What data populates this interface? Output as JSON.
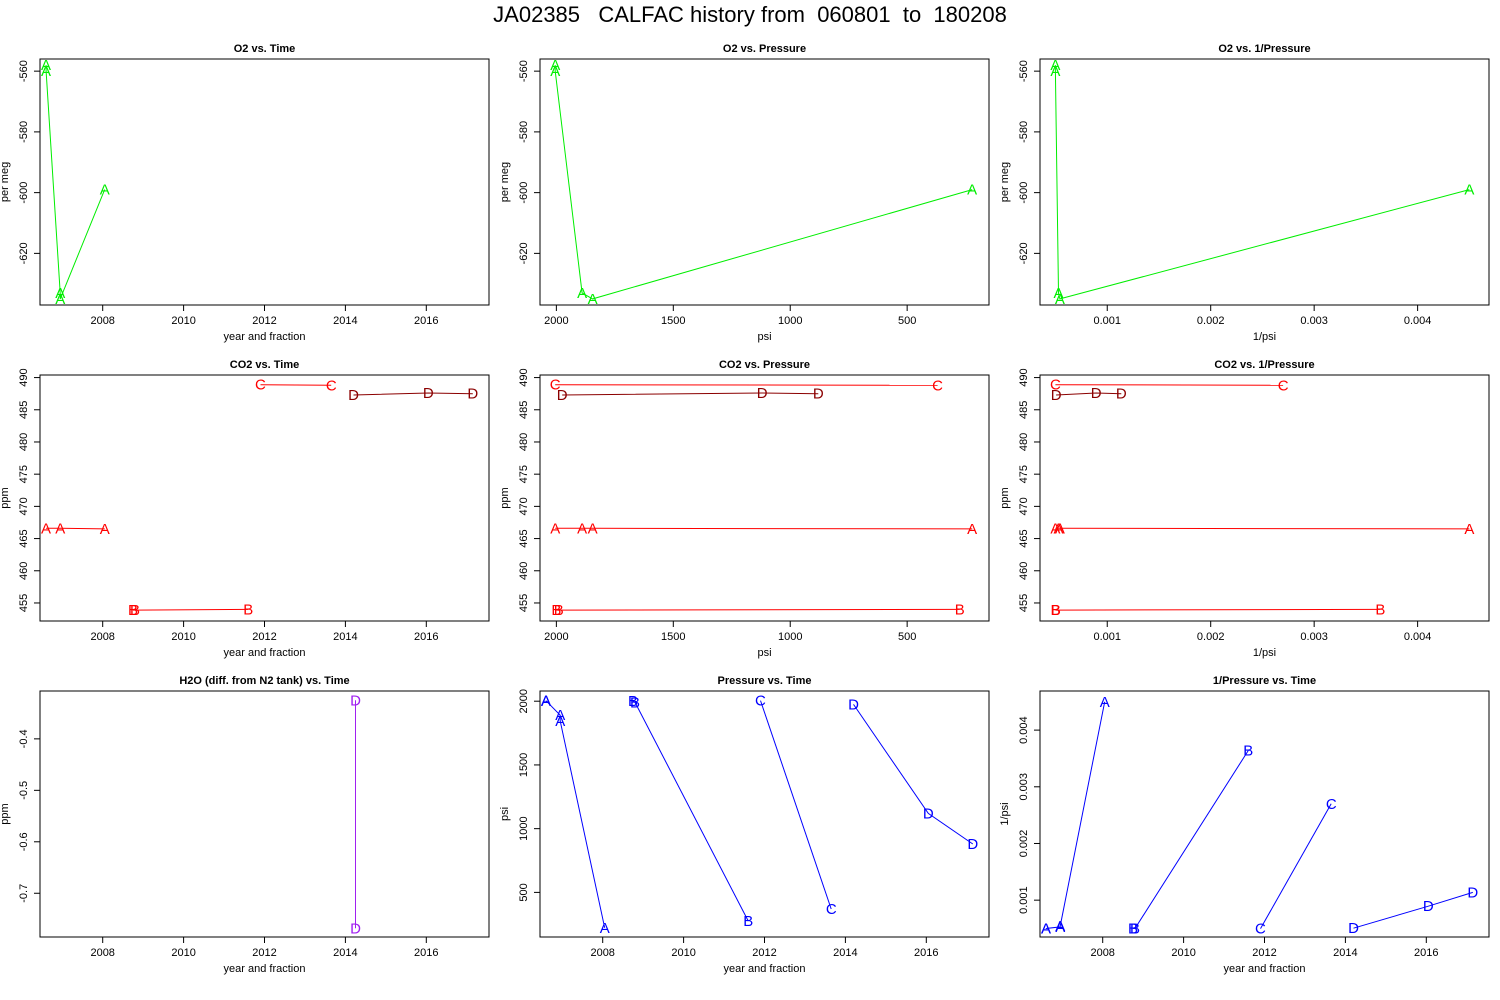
{
  "title": "JA02385   CALFAC history from  060801  to  180208",
  "colors": {
    "green": "#00ee00",
    "red": "#ff0000",
    "darkred": "#8b0000",
    "purple": "#a020f0",
    "blue": "#0000ff"
  },
  "chart_data": [
    {
      "type": "line",
      "title": "O2 vs. Time",
      "xlabel": "year and fraction",
      "ylabel": "per meg",
      "xlim": [
        2006.45,
        2017.55
      ],
      "ylim": [
        -637,
        -556
      ],
      "xticks": [
        2008,
        2010,
        2012,
        2014,
        2016
      ],
      "yticks": [
        -620,
        -600,
        -580,
        -560
      ],
      "ytick_rotated": true,
      "series": [
        {
          "color": "green",
          "points": [
            {
              "x": 2006.6,
              "y": -558,
              "label": "A"
            },
            {
              "x": 2006.6,
              "y": -560,
              "label": "A"
            },
            {
              "x": 2006.95,
              "y": -633,
              "label": "A"
            },
            {
              "x": 2006.95,
              "y": -635,
              "label": "A"
            },
            {
              "x": 2008.05,
              "y": -599,
              "label": "A"
            }
          ]
        }
      ]
    },
    {
      "type": "line",
      "title": "O2 vs. Pressure",
      "xlabel": "psi",
      "ylabel": "per meg",
      "xlim": [
        2070,
        150
      ],
      "ylim": [
        -637,
        -556
      ],
      "xticks": [
        2000,
        1500,
        1000,
        500
      ],
      "yticks": [
        -620,
        -600,
        -580,
        -560
      ],
      "ytick_rotated": true,
      "series": [
        {
          "color": "green",
          "points": [
            {
              "x": 2005,
              "y": -558,
              "label": "A"
            },
            {
              "x": 2005,
              "y": -560,
              "label": "A"
            },
            {
              "x": 1890,
              "y": -633,
              "label": "A"
            },
            {
              "x": 1845,
              "y": -635,
              "label": "A"
            },
            {
              "x": 222,
              "y": -599,
              "label": "A"
            }
          ]
        }
      ]
    },
    {
      "type": "line",
      "title": "O2 vs. 1/Pressure",
      "xlabel": "1/psi",
      "ylabel": "per meg",
      "xlim": [
        0.00035,
        0.00469
      ],
      "ylim": [
        -637,
        -556
      ],
      "xticks": [
        0.001,
        0.002,
        0.003,
        0.004
      ],
      "xticklabels": [
        "0.001",
        "0.002",
        "0.003",
        "0.004"
      ],
      "yticks": [
        -620,
        -600,
        -580,
        -560
      ],
      "ytick_rotated": true,
      "series": [
        {
          "color": "green",
          "points": [
            {
              "x": 0.000499,
              "y": -558,
              "label": "A"
            },
            {
              "x": 0.000499,
              "y": -560,
              "label": "A"
            },
            {
              "x": 0.000529,
              "y": -633,
              "label": "A"
            },
            {
              "x": 0.000542,
              "y": -635,
              "label": "A"
            },
            {
              "x": 0.0045,
              "y": -599,
              "label": "A"
            }
          ]
        }
      ]
    },
    {
      "type": "line",
      "title": "CO2 vs. Time",
      "xlabel": "year and fraction",
      "ylabel": "ppm",
      "xlim": [
        2006.45,
        2017.55
      ],
      "ylim": [
        452.2,
        490.4
      ],
      "xticks": [
        2008,
        2010,
        2012,
        2014,
        2016
      ],
      "yticks": [
        455,
        460,
        465,
        470,
        475,
        480,
        485,
        490
      ],
      "ytick_rotated": true,
      "series": [
        {
          "color": "red",
          "points": [
            {
              "x": 2006.6,
              "y": 466.6,
              "label": "A"
            },
            {
              "x": 2006.95,
              "y": 466.6,
              "label": "A"
            },
            {
              "x": 2008.05,
              "y": 466.5,
              "label": "A"
            }
          ]
        },
        {
          "color": "red",
          "points": [
            {
              "x": 2008.75,
              "y": 453.9,
              "label": "B"
            },
            {
              "x": 2008.8,
              "y": 453.9,
              "label": "B"
            },
            {
              "x": 2011.6,
              "y": 454.0,
              "label": "B"
            }
          ]
        },
        {
          "color": "red",
          "points": [
            {
              "x": 2011.9,
              "y": 488.9,
              "label": "C"
            },
            {
              "x": 2013.65,
              "y": 488.8,
              "label": "C"
            }
          ]
        },
        {
          "color": "darkred",
          "points": [
            {
              "x": 2014.2,
              "y": 487.3,
              "label": "D"
            },
            {
              "x": 2016.05,
              "y": 487.6,
              "label": "D"
            },
            {
              "x": 2017.15,
              "y": 487.5,
              "label": "D"
            }
          ]
        }
      ]
    },
    {
      "type": "line",
      "title": "CO2 vs. Pressure",
      "xlabel": "psi",
      "ylabel": "ppm",
      "xlim": [
        2070,
        150
      ],
      "ylim": [
        452.2,
        490.4
      ],
      "xticks": [
        2000,
        1500,
        1000,
        500
      ],
      "yticks": [
        455,
        460,
        465,
        470,
        475,
        480,
        485,
        490
      ],
      "ytick_rotated": true,
      "series": [
        {
          "color": "red",
          "points": [
            {
              "x": 2005,
              "y": 466.6,
              "label": "A"
            },
            {
              "x": 1890,
              "y": 466.6,
              "label": "A"
            },
            {
              "x": 1845,
              "y": 466.6,
              "label": "A"
            },
            {
              "x": 222,
              "y": 466.5,
              "label": "A"
            }
          ]
        },
        {
          "color": "red",
          "points": [
            {
              "x": 2000,
              "y": 453.9,
              "label": "B"
            },
            {
              "x": 1990,
              "y": 453.9,
              "label": "B"
            },
            {
              "x": 275,
              "y": 454.0,
              "label": "B"
            }
          ]
        },
        {
          "color": "red",
          "points": [
            {
              "x": 2005,
              "y": 488.9,
              "label": "C"
            },
            {
              "x": 370,
              "y": 488.8,
              "label": "C"
            }
          ]
        },
        {
          "color": "darkred",
          "points": [
            {
              "x": 1975,
              "y": 487.3,
              "label": "D"
            },
            {
              "x": 1120,
              "y": 487.6,
              "label": "D"
            },
            {
              "x": 880,
              "y": 487.5,
              "label": "D"
            }
          ]
        }
      ]
    },
    {
      "type": "line",
      "title": "CO2 vs. 1/Pressure",
      "xlabel": "1/psi",
      "ylabel": "ppm",
      "xlim": [
        0.00035,
        0.00469
      ],
      "ylim": [
        452.2,
        490.4
      ],
      "xticks": [
        0.001,
        0.002,
        0.003,
        0.004
      ],
      "xticklabels": [
        "0.001",
        "0.002",
        "0.003",
        "0.004"
      ],
      "yticks": [
        455,
        460,
        465,
        470,
        475,
        480,
        485,
        490
      ],
      "ytick_rotated": true,
      "series": [
        {
          "color": "red",
          "points": [
            {
              "x": 0.000499,
              "y": 466.6,
              "label": "A"
            },
            {
              "x": 0.000529,
              "y": 466.6,
              "label": "A"
            },
            {
              "x": 0.000542,
              "y": 466.6,
              "label": "A"
            },
            {
              "x": 0.0045,
              "y": 466.5,
              "label": "A"
            }
          ]
        },
        {
          "color": "red",
          "points": [
            {
              "x": 0.0005,
              "y": 453.9,
              "label": "B"
            },
            {
              "x": 0.000503,
              "y": 453.9,
              "label": "B"
            },
            {
              "x": 0.00364,
              "y": 454.0,
              "label": "B"
            }
          ]
        },
        {
          "color": "red",
          "points": [
            {
              "x": 0.000499,
              "y": 488.9,
              "label": "C"
            },
            {
              "x": 0.0027,
              "y": 488.8,
              "label": "C"
            }
          ]
        },
        {
          "color": "darkred",
          "points": [
            {
              "x": 0.000506,
              "y": 487.3,
              "label": "D"
            },
            {
              "x": 0.000893,
              "y": 487.6,
              "label": "D"
            },
            {
              "x": 0.001136,
              "y": 487.5,
              "label": "D"
            }
          ]
        }
      ]
    },
    {
      "type": "line",
      "title": "H2O (diff. from N2 tank) vs. Time",
      "xlabel": "year and fraction",
      "ylabel": "ppm",
      "xlim": [
        2006.45,
        2017.55
      ],
      "ylim": [
        -0.785,
        -0.307
      ],
      "xticks": [
        2008,
        2010,
        2012,
        2014,
        2016
      ],
      "yticks": [
        -0.7,
        -0.6,
        -0.5,
        -0.4
      ],
      "ytick_rotated": true,
      "series": [
        {
          "color": "purple",
          "points": [
            {
              "x": 2014.25,
              "y": -0.325,
              "label": "D"
            },
            {
              "x": 2014.25,
              "y": -0.768,
              "label": "D"
            }
          ]
        }
      ]
    },
    {
      "type": "line",
      "title": "Pressure vs. Time",
      "xlabel": "year and fraction",
      "ylabel": "psi",
      "xlim": [
        2006.45,
        2017.55
      ],
      "ylim": [
        150,
        2080
      ],
      "xticks": [
        2008,
        2010,
        2012,
        2014,
        2016
      ],
      "yticks": [
        500,
        1000,
        1500,
        2000
      ],
      "ytick_rotated": true,
      "series": [
        {
          "color": "blue",
          "points": [
            {
              "x": 2006.6,
              "y": 2005,
              "label": "A"
            },
            {
              "x": 2006.6,
              "y": 2003,
              "label": "A"
            },
            {
              "x": 2006.95,
              "y": 1890,
              "label": "A"
            },
            {
              "x": 2006.95,
              "y": 1845,
              "label": "A"
            },
            {
              "x": 2008.05,
              "y": 222,
              "label": "A"
            }
          ]
        },
        {
          "color": "blue",
          "points": [
            {
              "x": 2008.75,
              "y": 2000,
              "label": "B"
            },
            {
              "x": 2008.8,
              "y": 1990,
              "label": "B"
            },
            {
              "x": 2011.6,
              "y": 275,
              "label": "B"
            }
          ]
        },
        {
          "color": "blue",
          "points": [
            {
              "x": 2011.9,
              "y": 2005,
              "label": "C"
            },
            {
              "x": 2013.65,
              "y": 370,
              "label": "C"
            }
          ]
        },
        {
          "color": "blue",
          "points": [
            {
              "x": 2014.2,
              "y": 1975,
              "label": "D"
            },
            {
              "x": 2016.05,
              "y": 1120,
              "label": "D"
            },
            {
              "x": 2017.15,
              "y": 880,
              "label": "D"
            }
          ]
        }
      ]
    },
    {
      "type": "line",
      "title": "1/Pressure vs. Time",
      "xlabel": "year and fraction",
      "ylabel": "1/psi",
      "xlim": [
        2006.45,
        2017.55
      ],
      "ylim": [
        0.00035,
        0.00469
      ],
      "xticks": [
        2008,
        2010,
        2012,
        2014,
        2016
      ],
      "yticks": [
        0.001,
        0.002,
        0.003,
        0.004
      ],
      "yticklabels": [
        "0.001",
        "0.002",
        "0.003",
        "0.004"
      ],
      "ytick_rotated": true,
      "series": [
        {
          "color": "blue",
          "points": [
            {
              "x": 2006.6,
              "y": 0.000499,
              "label": "A"
            },
            {
              "x": 2006.6,
              "y": 0.0005,
              "label": "A"
            },
            {
              "x": 2006.95,
              "y": 0.000529,
              "label": "A"
            },
            {
              "x": 2006.95,
              "y": 0.000542,
              "label": "A"
            },
            {
              "x": 2008.05,
              "y": 0.0045,
              "label": "A"
            }
          ]
        },
        {
          "color": "blue",
          "points": [
            {
              "x": 2008.75,
              "y": 0.0005,
              "label": "B"
            },
            {
              "x": 2008.8,
              "y": 0.000503,
              "label": "B"
            },
            {
              "x": 2011.6,
              "y": 0.00364,
              "label": "B"
            }
          ]
        },
        {
          "color": "blue",
          "points": [
            {
              "x": 2011.9,
              "y": 0.000499,
              "label": "C"
            },
            {
              "x": 2013.65,
              "y": 0.0027,
              "label": "C"
            }
          ]
        },
        {
          "color": "blue",
          "points": [
            {
              "x": 2014.2,
              "y": 0.000506,
              "label": "D"
            },
            {
              "x": 2016.05,
              "y": 0.000893,
              "label": "D"
            },
            {
              "x": 2017.15,
              "y": 0.001136,
              "label": "D"
            }
          ]
        }
      ]
    }
  ]
}
